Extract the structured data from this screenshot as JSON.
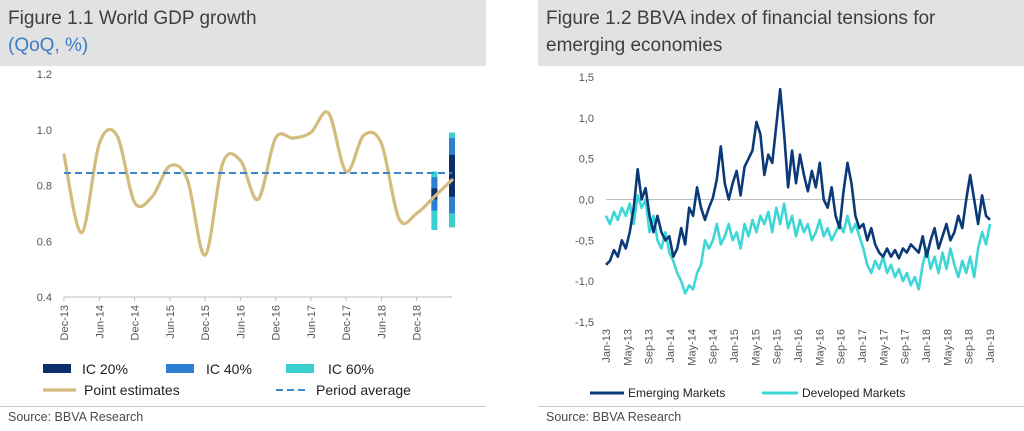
{
  "figure1": {
    "title": "Figure 1.1 World GDP growth",
    "subtitle": "(QoQ, %)",
    "source": "Source: BBVA Research",
    "colors": {
      "point": "#d4bb7e",
      "avg": "#3b86cc",
      "ic20": "#0b2f6b",
      "ic40": "#2d7fd3",
      "ic60": "#3ad0d0",
      "subtitle": "#3b7dc4"
    },
    "legend": {
      "ic20": "IC 20%",
      "ic40": "IC 40%",
      "ic60": "IC 60%",
      "point": "Point estimates",
      "avg": "Period average"
    },
    "chart_data": {
      "type": "line",
      "ylim": [
        0.4,
        1.2
      ],
      "yticks": [
        "0.4",
        "0.6",
        "0.8",
        "1.0",
        "1.2"
      ],
      "xticks": [
        "Dec-13",
        "Jun-14",
        "Dec-14",
        "Jun-15",
        "Dec-15",
        "Jun-16",
        "Dec-16",
        "Jun-17",
        "Dec-17",
        "Jun-18",
        "Dec-18"
      ],
      "quarters": [
        "Dec-13",
        "Mar-14",
        "Jun-14",
        "Sep-14",
        "Dec-14",
        "Mar-15",
        "Jun-15",
        "Sep-15",
        "Dec-15",
        "Mar-16",
        "Jun-16",
        "Sep-16",
        "Dec-16",
        "Mar-17",
        "Jun-17",
        "Sep-17",
        "Dec-17",
        "Mar-18",
        "Jun-18",
        "Sep-18",
        "Dec-18",
        "Mar-19",
        "Jun-19"
      ],
      "series": [
        {
          "name": "Point estimates",
          "values": [
            0.91,
            0.63,
            0.95,
            0.98,
            0.74,
            0.76,
            0.87,
            0.82,
            0.55,
            0.88,
            0.89,
            0.75,
            0.97,
            0.97,
            0.99,
            1.06,
            0.85,
            0.98,
            0.95,
            0.68,
            0.7,
            0.76,
            0.82
          ]
        },
        {
          "name": "Period average",
          "value": 0.845
        }
      ],
      "intervals": [
        {
          "x": "Mar-19",
          "ic20": [
            0.75,
            0.79
          ],
          "ic40": [
            0.71,
            0.83
          ],
          "ic60": [
            0.64,
            0.85
          ]
        },
        {
          "x": "Jun-19",
          "ic20": [
            0.76,
            0.91
          ],
          "ic40": [
            0.7,
            0.97
          ],
          "ic60": [
            0.65,
            0.99
          ]
        }
      ]
    }
  },
  "figure2": {
    "title_line1": "Figure 1.2 BBVA index of financial tensions for",
    "title_line2": "emerging economies",
    "source": "Source: BBVA Research",
    "colors": {
      "em": "#0b3a78",
      "dm": "#3ed6d6"
    },
    "legend": {
      "em": "Emerging Markets",
      "dm": "Developed Markets"
    },
    "chart_data": {
      "type": "line",
      "ylim": [
        -1.5,
        1.5
      ],
      "yticks": [
        "1,5",
        "1,0",
        "0,5",
        "0,0",
        "-0,5",
        "-1,0",
        "-1,5"
      ],
      "xticks": [
        "Jan-13",
        "May-13",
        "Sep-13",
        "Jan-14",
        "May-14",
        "Sep-14",
        "Jan-15",
        "May-15",
        "Sep-15",
        "Jan-16",
        "May-16",
        "Sep-16",
        "Jan-17",
        "May-17",
        "Sep-17",
        "Jan-18",
        "May-18",
        "Sep-18",
        "Jan-19"
      ],
      "series": [
        {
          "name": "Emerging Markets",
          "values": [
            [
              0.0,
              -0.8
            ],
            [
              0.5,
              -0.75
            ],
            [
              1.0,
              -0.62
            ],
            [
              1.5,
              -0.7
            ],
            [
              2.0,
              -0.5
            ],
            [
              2.5,
              -0.6
            ],
            [
              3.0,
              -0.4
            ],
            [
              3.5,
              -0.1
            ],
            [
              4.0,
              0.37
            ],
            [
              4.5,
              0.0
            ],
            [
              5.0,
              0.14
            ],
            [
              5.5,
              -0.2
            ],
            [
              6.0,
              -0.4
            ],
            [
              6.5,
              -0.2
            ],
            [
              7.0,
              -0.4
            ],
            [
              7.5,
              -0.5
            ],
            [
              8.0,
              -0.45
            ],
            [
              8.5,
              -0.7
            ],
            [
              9.0,
              -0.6
            ],
            [
              9.5,
              -0.35
            ],
            [
              10.0,
              -0.55
            ],
            [
              10.5,
              -0.1
            ],
            [
              11.0,
              -0.2
            ],
            [
              11.5,
              0.15
            ],
            [
              12.0,
              -0.1
            ],
            [
              12.5,
              -0.25
            ],
            [
              13.0,
              -0.1
            ],
            [
              13.5,
              0.02
            ],
            [
              14.0,
              0.25
            ],
            [
              14.5,
              0.65
            ],
            [
              15.0,
              0.2
            ],
            [
              15.5,
              0.0
            ],
            [
              16.0,
              0.2
            ],
            [
              16.5,
              0.35
            ],
            [
              17.0,
              0.05
            ],
            [
              17.5,
              0.4
            ],
            [
              18.0,
              0.5
            ],
            [
              18.5,
              0.6
            ],
            [
              19.0,
              0.95
            ],
            [
              19.5,
              0.8
            ],
            [
              20.0,
              0.3
            ],
            [
              20.5,
              0.55
            ],
            [
              21.0,
              0.45
            ],
            [
              21.5,
              0.9
            ],
            [
              22.0,
              1.35
            ],
            [
              22.5,
              0.8
            ],
            [
              23.0,
              0.15
            ],
            [
              23.5,
              0.6
            ],
            [
              24.0,
              0.2
            ],
            [
              24.5,
              0.55
            ],
            [
              25.0,
              0.3
            ],
            [
              25.5,
              0.1
            ],
            [
              26.0,
              0.35
            ],
            [
              26.5,
              0.15
            ],
            [
              27.0,
              0.45
            ],
            [
              27.5,
              0.0
            ],
            [
              28.0,
              -0.1
            ],
            [
              28.5,
              0.15
            ],
            [
              29.0,
              -0.2
            ],
            [
              29.5,
              -0.35
            ],
            [
              30.0,
              0.1
            ],
            [
              30.5,
              0.45
            ],
            [
              31.0,
              0.2
            ],
            [
              31.5,
              -0.2
            ],
            [
              32.0,
              -0.35
            ],
            [
              32.5,
              -0.3
            ],
            [
              33.0,
              -0.5
            ],
            [
              33.5,
              -0.35
            ],
            [
              34.0,
              -0.55
            ],
            [
              34.5,
              -0.65
            ],
            [
              35.0,
              -0.7
            ],
            [
              35.5,
              -0.6
            ],
            [
              36.0,
              -0.7
            ],
            [
              36.5,
              -0.62
            ],
            [
              37.0,
              -0.72
            ],
            [
              37.5,
              -0.6
            ],
            [
              38.0,
              -0.65
            ],
            [
              38.5,
              -0.55
            ],
            [
              39.0,
              -0.6
            ],
            [
              39.5,
              -0.65
            ],
            [
              40.0,
              -0.45
            ],
            [
              40.5,
              -0.7
            ],
            [
              41.0,
              -0.5
            ],
            [
              41.5,
              -0.35
            ],
            [
              42.0,
              -0.6
            ],
            [
              42.5,
              -0.45
            ],
            [
              43.0,
              -0.3
            ],
            [
              43.5,
              -0.5
            ],
            [
              44.0,
              -0.4
            ],
            [
              44.5,
              -0.2
            ],
            [
              45.0,
              -0.35
            ],
            [
              45.5,
              0.0
            ],
            [
              46.0,
              0.3
            ],
            [
              46.5,
              0.0
            ],
            [
              47.0,
              -0.3
            ],
            [
              47.5,
              0.05
            ],
            [
              48.0,
              -0.2
            ],
            [
              48.5,
              -0.25
            ]
          ]
        },
        {
          "name": "Developed Markets",
          "values": [
            [
              0.0,
              -0.2
            ],
            [
              0.5,
              -0.3
            ],
            [
              1.0,
              -0.15
            ],
            [
              1.5,
              -0.25
            ],
            [
              2.0,
              -0.1
            ],
            [
              2.5,
              -0.2
            ],
            [
              3.0,
              -0.05
            ],
            [
              3.5,
              -0.3
            ],
            [
              4.0,
              0.05
            ],
            [
              4.5,
              -0.1
            ],
            [
              5.0,
              0.0
            ],
            [
              5.5,
              -0.4
            ],
            [
              6.0,
              -0.2
            ],
            [
              6.5,
              -0.5
            ],
            [
              7.0,
              -0.6
            ],
            [
              7.5,
              -0.4
            ],
            [
              8.0,
              -0.65
            ],
            [
              8.5,
              -0.75
            ],
            [
              9.0,
              -0.9
            ],
            [
              9.5,
              -1.0
            ],
            [
              10.0,
              -1.15
            ],
            [
              10.5,
              -1.05
            ],
            [
              11.0,
              -1.1
            ],
            [
              11.5,
              -0.9
            ],
            [
              12.0,
              -0.8
            ],
            [
              12.5,
              -0.5
            ],
            [
              13.0,
              -0.6
            ],
            [
              13.5,
              -0.5
            ],
            [
              14.0,
              -0.3
            ],
            [
              14.5,
              -0.55
            ],
            [
              15.0,
              -0.45
            ],
            [
              15.5,
              -0.3
            ],
            [
              16.0,
              -0.5
            ],
            [
              16.5,
              -0.4
            ],
            [
              17.0,
              -0.6
            ],
            [
              17.5,
              -0.3
            ],
            [
              18.0,
              -0.45
            ],
            [
              18.5,
              -0.25
            ],
            [
              19.0,
              -0.4
            ],
            [
              19.5,
              -0.2
            ],
            [
              20.0,
              -0.3
            ],
            [
              20.5,
              -0.15
            ],
            [
              21.0,
              -0.4
            ],
            [
              21.5,
              -0.1
            ],
            [
              22.0,
              -0.3
            ],
            [
              22.5,
              -0.05
            ],
            [
              23.0,
              -0.35
            ],
            [
              23.5,
              -0.2
            ],
            [
              24.0,
              -0.45
            ],
            [
              24.5,
              -0.25
            ],
            [
              25.0,
              -0.4
            ],
            [
              25.5,
              -0.3
            ],
            [
              26.0,
              -0.5
            ],
            [
              26.5,
              -0.4
            ],
            [
              27.0,
              -0.25
            ],
            [
              27.5,
              -0.45
            ],
            [
              28.0,
              -0.35
            ],
            [
              28.5,
              -0.5
            ],
            [
              29.0,
              -0.4
            ],
            [
              29.5,
              -0.3
            ],
            [
              30.0,
              -0.4
            ],
            [
              30.5,
              -0.2
            ],
            [
              31.0,
              -0.4
            ],
            [
              31.5,
              -0.3
            ],
            [
              32.0,
              -0.45
            ],
            [
              32.5,
              -0.6
            ],
            [
              33.0,
              -0.8
            ],
            [
              33.5,
              -0.9
            ],
            [
              34.0,
              -0.75
            ],
            [
              34.5,
              -0.85
            ],
            [
              35.0,
              -0.7
            ],
            [
              35.5,
              -0.9
            ],
            [
              36.0,
              -0.8
            ],
            [
              36.5,
              -0.95
            ],
            [
              37.0,
              -0.85
            ],
            [
              37.5,
              -1.0
            ],
            [
              38.0,
              -0.9
            ],
            [
              38.5,
              -1.05
            ],
            [
              39.0,
              -0.95
            ],
            [
              39.5,
              -1.1
            ],
            [
              40.0,
              -0.8
            ],
            [
              40.5,
              -0.6
            ],
            [
              41.0,
              -0.85
            ],
            [
              41.5,
              -0.7
            ],
            [
              42.0,
              -0.9
            ],
            [
              42.5,
              -0.65
            ],
            [
              43.0,
              -0.85
            ],
            [
              43.5,
              -0.6
            ],
            [
              44.0,
              -0.8
            ],
            [
              44.5,
              -0.95
            ],
            [
              45.0,
              -0.75
            ],
            [
              45.5,
              -0.9
            ],
            [
              46.0,
              -0.7
            ],
            [
              46.5,
              -0.95
            ],
            [
              47.0,
              -0.6
            ],
            [
              47.5,
              -0.4
            ],
            [
              48.0,
              -0.55
            ],
            [
              48.5,
              -0.3
            ]
          ]
        }
      ]
    }
  }
}
